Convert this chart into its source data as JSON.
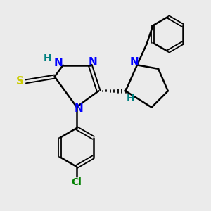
{
  "background_color": "#ebebeb",
  "bond_color": "#000000",
  "atom_colors": {
    "N": "#0000ff",
    "S": "#cccc00",
    "Cl": "#008000",
    "H": "#008080",
    "C": "#000000"
  },
  "figsize": [
    3.0,
    3.0
  ],
  "dpi": 100
}
